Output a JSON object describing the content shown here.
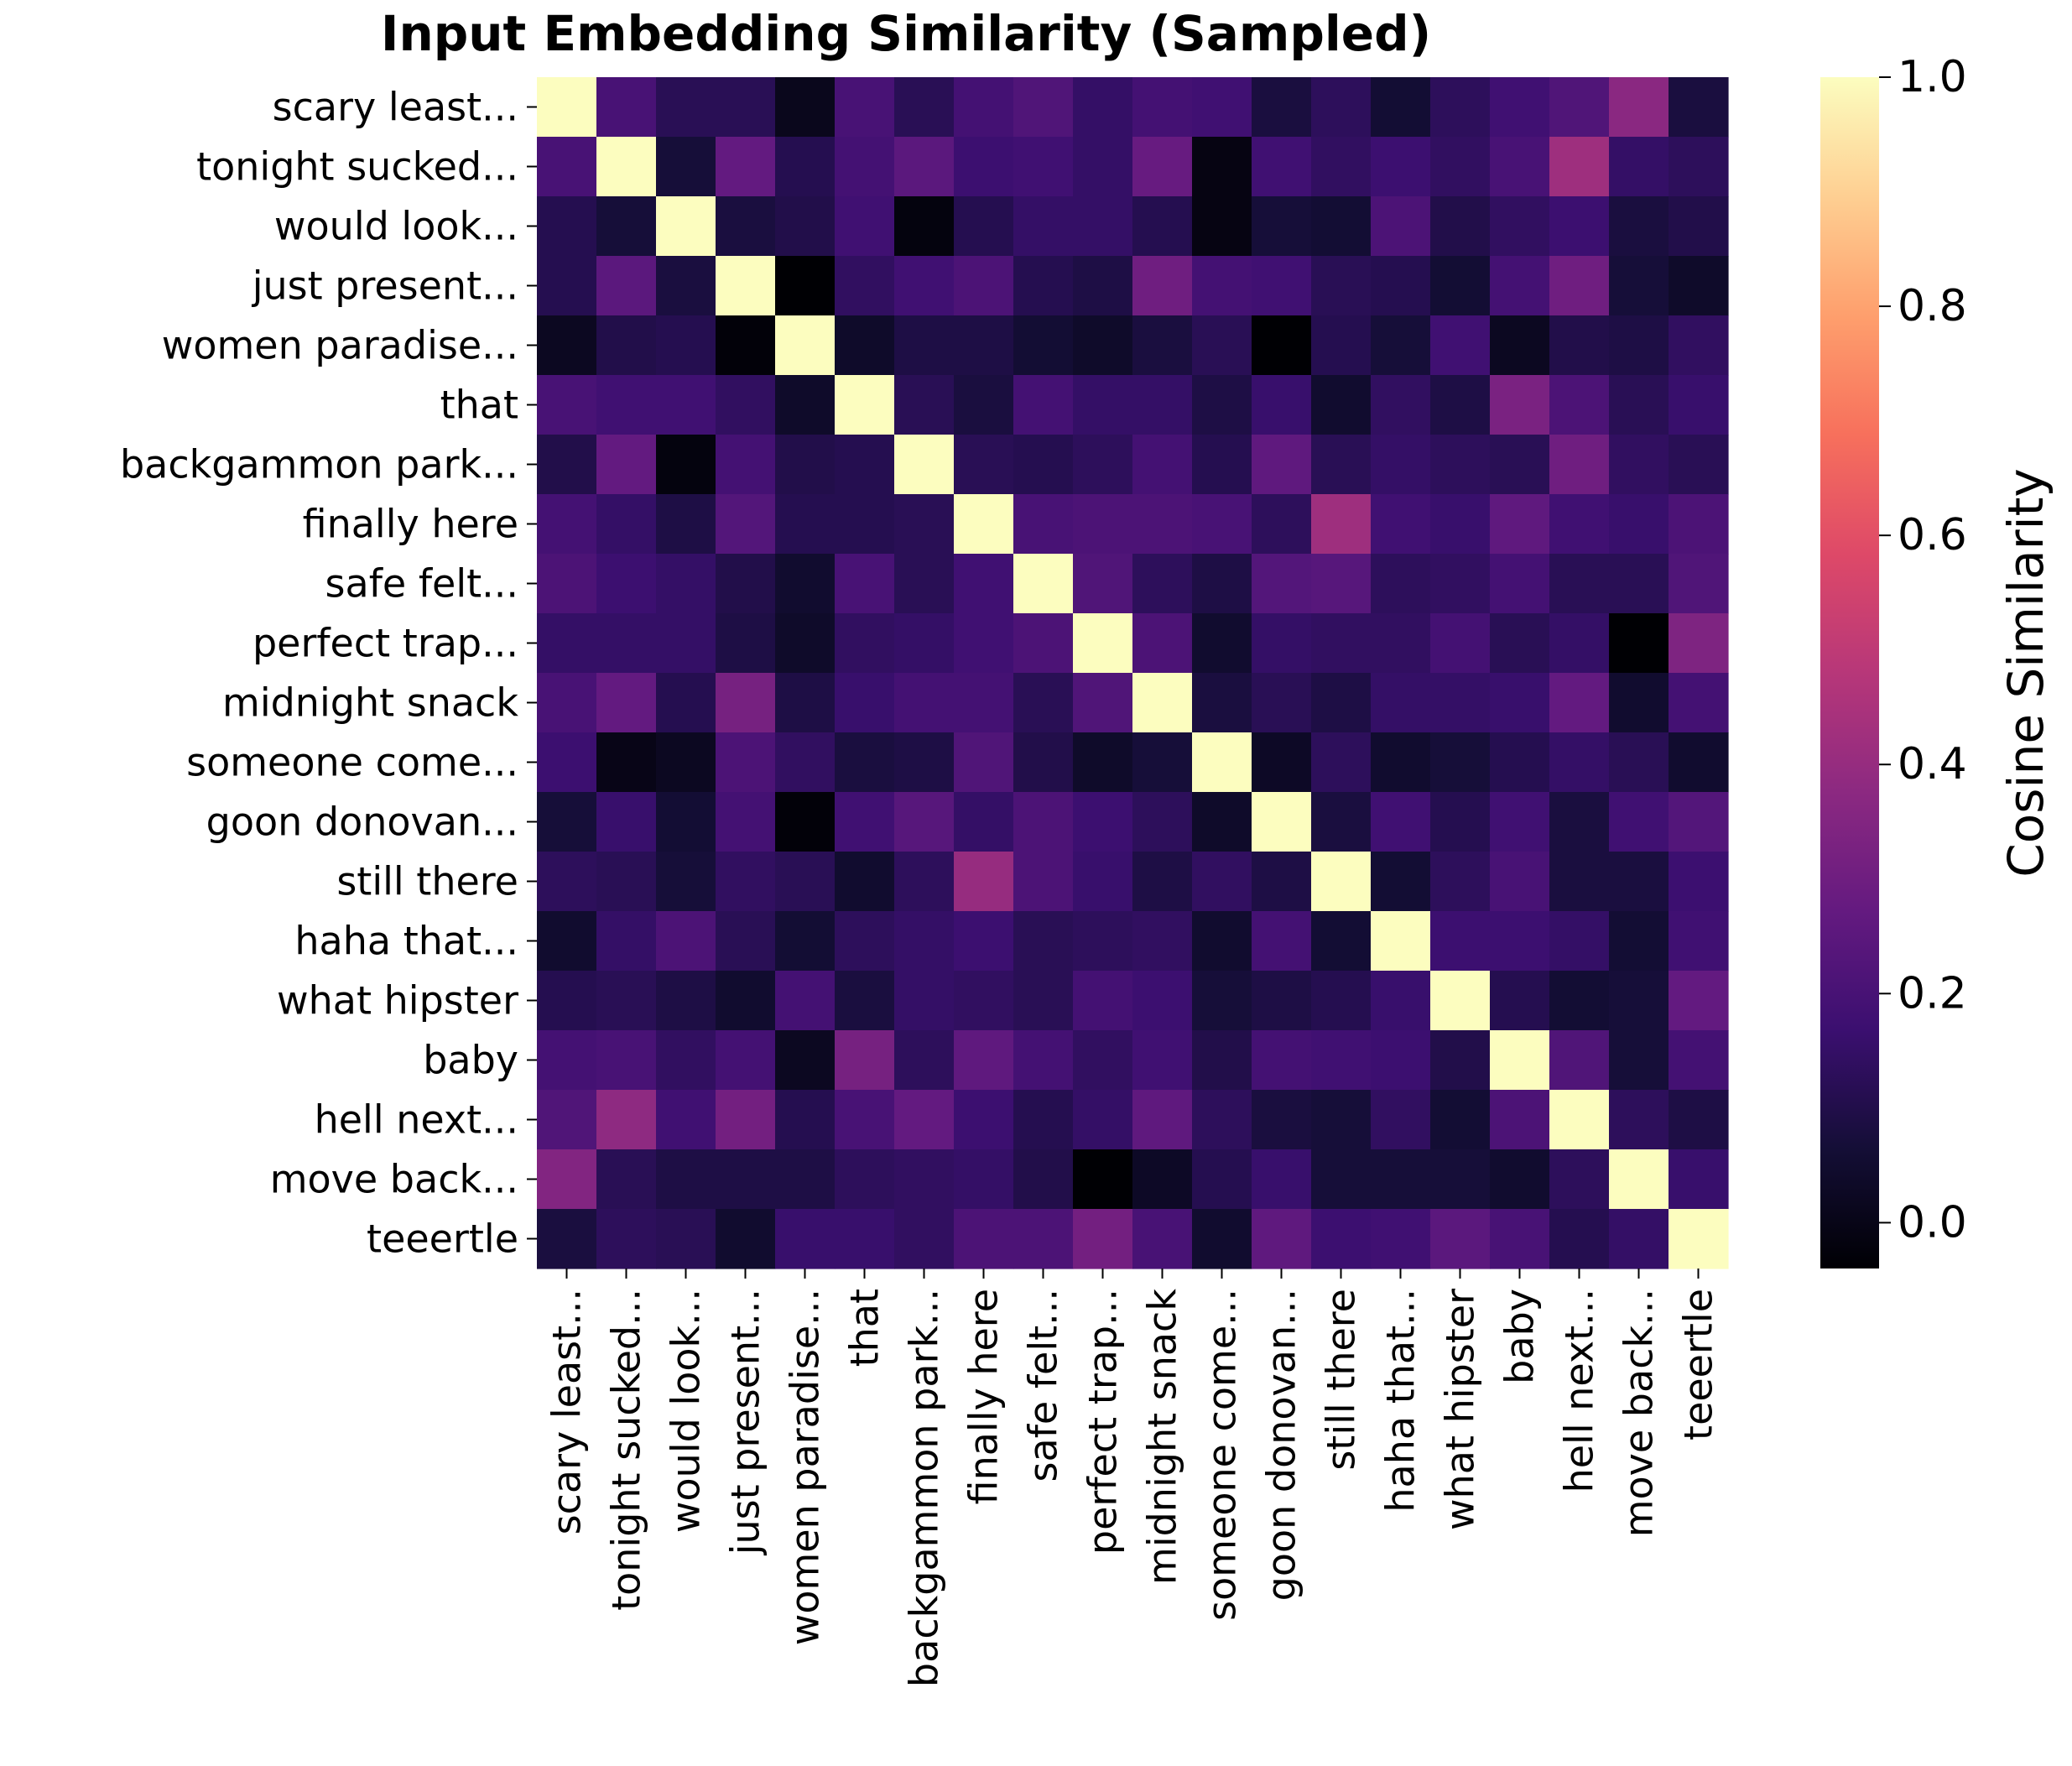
{
  "chart_data": {
    "type": "heatmap",
    "title": "Input Embedding Similarity (Sampled)",
    "colormap": "magma",
    "labels": [
      "scary least...",
      "tonight sucked...",
      "would look...",
      "just present...",
      "women paradise...",
      "that",
      "backgammon park...",
      "finally here",
      "safe felt...",
      "perfect trap...",
      "midnight snack",
      "someone come...",
      "goon donovan...",
      "still there",
      "haha that...",
      "what hipster",
      "baby",
      "hell next...",
      "move back...",
      "teeertle"
    ],
    "values": [
      [
        1.0,
        0.2,
        0.12,
        0.12,
        0.01,
        0.2,
        0.12,
        0.19,
        0.22,
        0.15,
        0.19,
        0.18,
        0.08,
        0.13,
        0.06,
        0.13,
        0.18,
        0.22,
        0.37,
        0.08
      ],
      [
        0.2,
        1.0,
        0.07,
        0.27,
        0.11,
        0.19,
        0.25,
        0.17,
        0.18,
        0.15,
        0.28,
        -0.01,
        0.18,
        0.14,
        0.17,
        0.14,
        0.2,
        0.42,
        0.15,
        0.13
      ],
      [
        0.11,
        0.07,
        1.0,
        0.08,
        0.1,
        0.18,
        -0.02,
        0.11,
        0.15,
        0.15,
        0.11,
        -0.01,
        0.07,
        0.06,
        0.21,
        0.1,
        0.14,
        0.17,
        0.08,
        0.1
      ],
      [
        0.11,
        0.25,
        0.08,
        1.0,
        -0.04,
        0.14,
        0.18,
        0.21,
        0.11,
        0.09,
        0.3,
        0.19,
        0.18,
        0.12,
        0.11,
        0.06,
        0.19,
        0.3,
        0.07,
        0.04
      ],
      [
        0.02,
        0.1,
        0.11,
        -0.03,
        1.0,
        0.04,
        0.09,
        0.09,
        0.06,
        0.04,
        0.08,
        0.12,
        -0.04,
        0.11,
        0.07,
        0.18,
        0.02,
        0.1,
        0.09,
        0.14
      ],
      [
        0.2,
        0.18,
        0.18,
        0.14,
        0.04,
        1.0,
        0.12,
        0.08,
        0.19,
        0.15,
        0.15,
        0.09,
        0.16,
        0.05,
        0.14,
        0.09,
        0.33,
        0.21,
        0.12,
        0.16
      ],
      [
        0.1,
        0.27,
        -0.02,
        0.19,
        0.1,
        0.11,
        1.0,
        0.12,
        0.11,
        0.13,
        0.19,
        0.11,
        0.26,
        0.12,
        0.15,
        0.13,
        0.12,
        0.3,
        0.14,
        0.12
      ],
      [
        0.19,
        0.15,
        0.09,
        0.23,
        0.11,
        0.11,
        0.12,
        1.0,
        0.2,
        0.21,
        0.21,
        0.2,
        0.13,
        0.42,
        0.18,
        0.16,
        0.26,
        0.18,
        0.16,
        0.21
      ],
      [
        0.21,
        0.17,
        0.15,
        0.1,
        0.05,
        0.2,
        0.12,
        0.18,
        1.0,
        0.22,
        0.13,
        0.09,
        0.23,
        0.24,
        0.13,
        0.14,
        0.19,
        0.12,
        0.12,
        0.22
      ],
      [
        0.15,
        0.15,
        0.15,
        0.09,
        0.04,
        0.14,
        0.15,
        0.18,
        0.21,
        1.0,
        0.21,
        0.05,
        0.15,
        0.14,
        0.14,
        0.19,
        0.12,
        0.15,
        -0.04,
        0.34
      ],
      [
        0.2,
        0.27,
        0.11,
        0.32,
        0.09,
        0.16,
        0.19,
        0.19,
        0.12,
        0.22,
        1.0,
        0.08,
        0.12,
        0.09,
        0.15,
        0.15,
        0.16,
        0.27,
        0.05,
        0.19
      ],
      [
        0.17,
        0.0,
        0.02,
        0.21,
        0.14,
        0.08,
        0.09,
        0.22,
        0.1,
        0.04,
        0.07,
        1.0,
        0.03,
        0.13,
        0.05,
        0.07,
        0.11,
        0.15,
        0.12,
        0.05
      ],
      [
        0.07,
        0.16,
        0.06,
        0.19,
        -0.03,
        0.18,
        0.24,
        0.15,
        0.21,
        0.17,
        0.13,
        0.04,
        1.0,
        0.08,
        0.18,
        0.11,
        0.18,
        0.08,
        0.18,
        0.23
      ],
      [
        0.13,
        0.12,
        0.07,
        0.14,
        0.12,
        0.05,
        0.13,
        0.4,
        0.21,
        0.16,
        0.09,
        0.14,
        0.09,
        1.0,
        0.06,
        0.13,
        0.2,
        0.08,
        0.08,
        0.17
      ],
      [
        0.05,
        0.15,
        0.21,
        0.12,
        0.06,
        0.13,
        0.15,
        0.17,
        0.12,
        0.13,
        0.14,
        0.05,
        0.19,
        0.06,
        1.0,
        0.17,
        0.17,
        0.15,
        0.06,
        0.18
      ],
      [
        0.11,
        0.12,
        0.09,
        0.05,
        0.19,
        0.08,
        0.15,
        0.14,
        0.12,
        0.19,
        0.17,
        0.07,
        0.09,
        0.11,
        0.16,
        1.0,
        0.11,
        0.06,
        0.07,
        0.27
      ],
      [
        0.19,
        0.2,
        0.14,
        0.19,
        0.02,
        0.32,
        0.13,
        0.26,
        0.19,
        0.14,
        0.18,
        0.1,
        0.19,
        0.18,
        0.17,
        0.1,
        1.0,
        0.22,
        0.07,
        0.19
      ],
      [
        0.22,
        0.38,
        0.18,
        0.31,
        0.11,
        0.2,
        0.27,
        0.17,
        0.11,
        0.15,
        0.26,
        0.13,
        0.08,
        0.07,
        0.14,
        0.06,
        0.21,
        1.0,
        0.13,
        0.09
      ],
      [
        0.35,
        0.12,
        0.09,
        0.09,
        0.09,
        0.13,
        0.14,
        0.15,
        0.1,
        -0.04,
        0.03,
        0.11,
        0.16,
        0.07,
        0.07,
        0.07,
        0.05,
        0.13,
        1.0,
        0.16
      ],
      [
        0.08,
        0.13,
        0.12,
        0.05,
        0.16,
        0.16,
        0.14,
        0.21,
        0.21,
        0.31,
        0.2,
        0.05,
        0.26,
        0.17,
        0.18,
        0.25,
        0.2,
        0.11,
        0.15,
        1.0
      ]
    ],
    "colorbar": {
      "label": "Cosine Similarity",
      "range": [
        -0.04,
        1.0
      ],
      "ticks": [
        0.0,
        0.2,
        0.4,
        0.6,
        0.8,
        1.0
      ],
      "tick_labels": [
        "0.0",
        "0.2",
        "0.4",
        "0.6",
        "0.8",
        "1.0"
      ]
    }
  }
}
